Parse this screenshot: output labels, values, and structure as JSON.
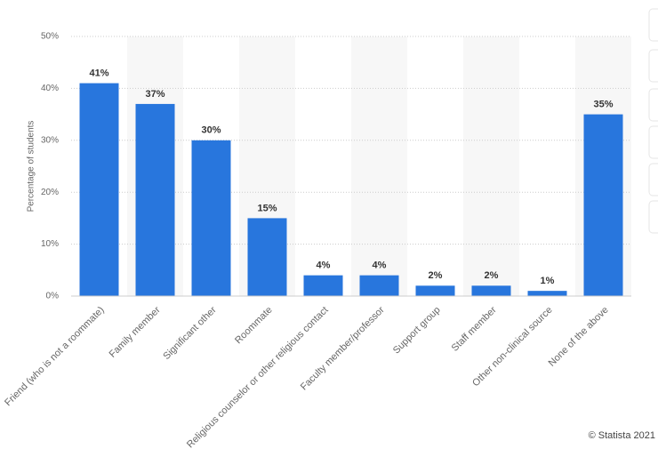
{
  "chart_data": {
    "type": "bar",
    "y_label": "Percentage of students",
    "categories": [
      "Friend (who is not a roommate)",
      "Family member",
      "Significant other",
      "Roommate",
      "Religious counselor or other religious contact",
      "Faculty member/professor",
      "Support group",
      "Staff member",
      "Other non-clinical source",
      "None of the above"
    ],
    "values": [
      41,
      37,
      30,
      15,
      4,
      4,
      2,
      2,
      1,
      35
    ],
    "value_labels": [
      "41%",
      "37%",
      "30%",
      "15%",
      "4%",
      "4%",
      "2%",
      "2%",
      "1%",
      "35%"
    ],
    "color": "#2876dd",
    "ylim": [
      0,
      50
    ],
    "yticks": [
      {
        "value": 0,
        "label": "0%"
      },
      {
        "value": 10,
        "label": "10%"
      },
      {
        "value": 20,
        "label": "20%"
      },
      {
        "value": 30,
        "label": "30%"
      },
      {
        "value": 40,
        "label": "40%"
      },
      {
        "value": 50,
        "label": "50%"
      }
    ],
    "grid": true,
    "credit": "© Statista 2021"
  }
}
